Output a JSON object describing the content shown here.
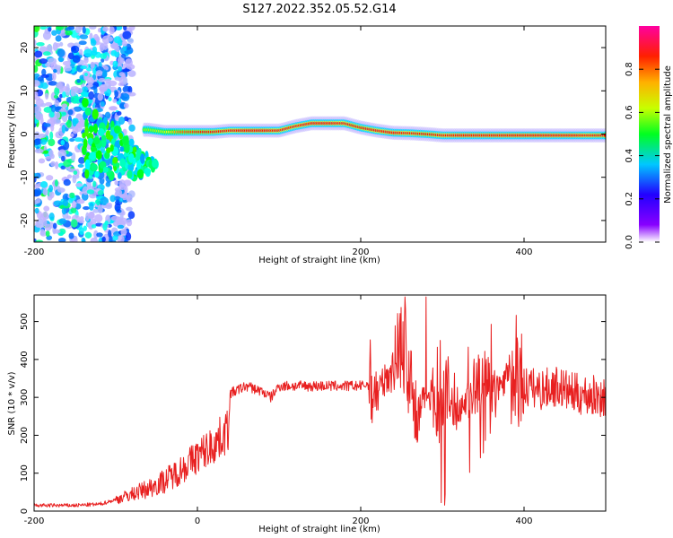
{
  "figure": {
    "title": "S127.2022.352.05.52.G14"
  },
  "colors": {
    "snr_line": "#e82020",
    "axis": "#000000",
    "background": "#ffffff"
  },
  "chart_data": [
    {
      "type": "heatmap",
      "xlabel": "Height of straight line (km)",
      "ylabel": "Frequency (Hz)",
      "xlim": [
        -200,
        500
      ],
      "ylim": [
        -25,
        25
      ],
      "xticks": [
        -200,
        0,
        200,
        400
      ],
      "yticks": [
        -20,
        -10,
        0,
        10,
        20
      ],
      "colorbar": {
        "label": "Normalized spectral amplitude",
        "range": [
          0,
          1
        ],
        "ticks": [
          "0.0",
          "0.2",
          "0.4",
          "0.6",
          "0.8"
        ],
        "colormap": "rainbow"
      },
      "ridge": {
        "x": [
          -60,
          -40,
          -20,
          0,
          20,
          40,
          60,
          80,
          100,
          120,
          140,
          160,
          180,
          200,
          220,
          240,
          260,
          280,
          300,
          320,
          340,
          360,
          380,
          400,
          420,
          440,
          460,
          480,
          500
        ],
        "frequency": [
          1,
          0.5,
          0.5,
          0.5,
          0.5,
          0.8,
          0.8,
          0.8,
          0.8,
          1.8,
          2.5,
          2.5,
          2.5,
          1.5,
          0.8,
          0.3,
          0.2,
          0,
          -0.3,
          -0.3,
          -0.3,
          -0.3,
          -0.3,
          -0.3,
          -0.3,
          -0.3,
          -0.3,
          -0.3,
          -0.3
        ],
        "amplitude": [
          0.55,
          0.6,
          0.75,
          0.8,
          0.85,
          0.9,
          0.95,
          0.95,
          0.9,
          0.9,
          0.95,
          0.95,
          0.9,
          0.85,
          0.9,
          0.95,
          0.9,
          0.85,
          0.9,
          0.95,
          0.95,
          0.95,
          0.95,
          0.95,
          0.95,
          0.95,
          0.95,
          0.9,
          0.85
        ]
      },
      "noise_region": {
        "x_range": [
          -200,
          -80
        ],
        "amplitude_range": [
          0.05,
          0.5
        ]
      }
    },
    {
      "type": "line",
      "xlabel": "Height of straight line (km)",
      "ylabel": "SNR (10 * v/v)",
      "xlim": [
        -200,
        500
      ],
      "ylim": [
        0,
        570
      ],
      "xticks": [
        -200,
        0,
        200,
        400
      ],
      "yticks": [
        0,
        100,
        200,
        300,
        400,
        500
      ],
      "series": [
        {
          "x": [
            -200,
            -150,
            -120,
            -100,
            -80,
            -60,
            -40,
            -20,
            0,
            20,
            38,
            40,
            60,
            80,
            90,
            100,
            150,
            200,
            210,
            220,
            240,
            250,
            260,
            270,
            280,
            290,
            300,
            310,
            320,
            340,
            360,
            380,
            400,
            420,
            440,
            460,
            480,
            500
          ],
          "y": [
            15,
            15,
            18,
            30,
            45,
            60,
            80,
            110,
            145,
            175,
            215,
            310,
            330,
            315,
            300,
            330,
            330,
            330,
            335,
            310,
            385,
            460,
            340,
            240,
            320,
            300,
            260,
            290,
            270,
            320,
            300,
            360,
            330,
            320,
            330,
            310,
            305,
            300
          ]
        }
      ]
    }
  ]
}
